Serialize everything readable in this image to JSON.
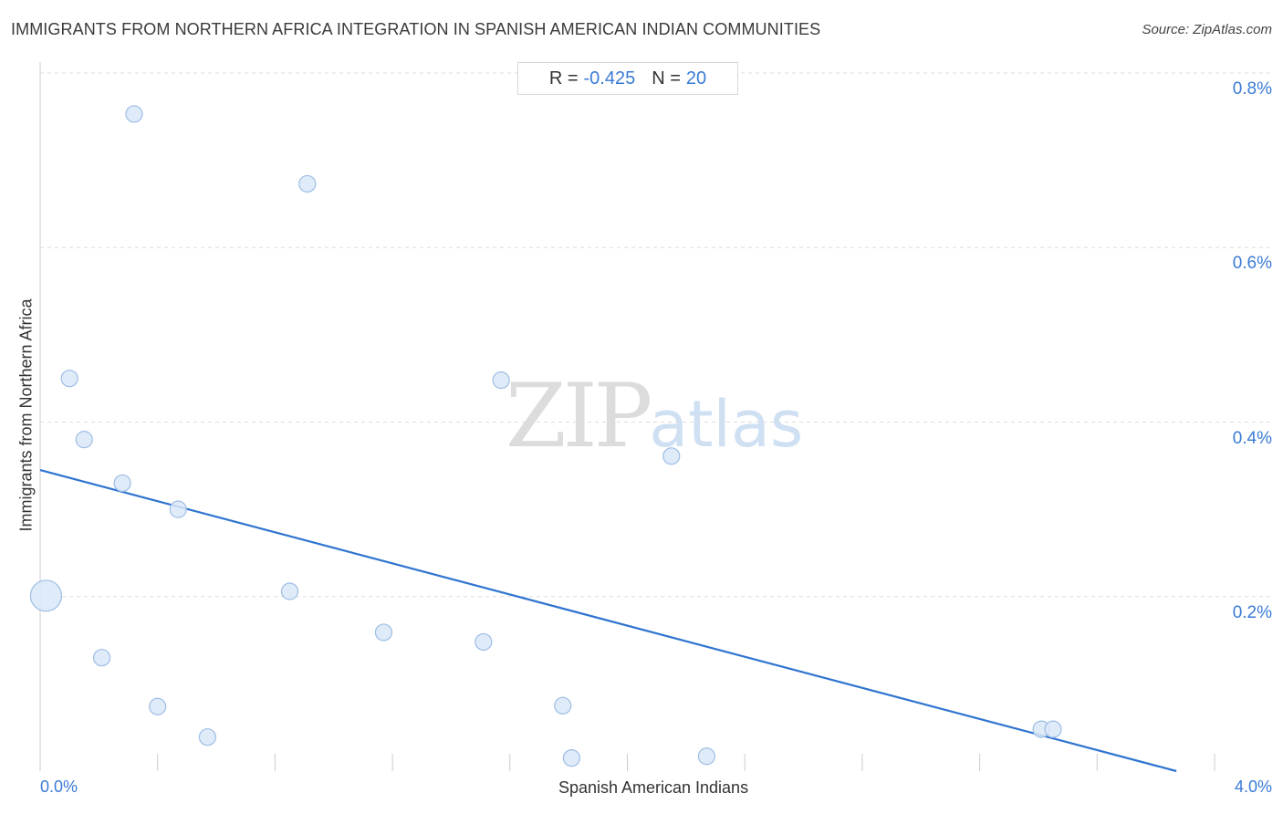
{
  "header": {
    "title": "IMMIGRANTS FROM NORTHERN AFRICA INTEGRATION IN SPANISH AMERICAN INDIAN COMMUNITIES",
    "source": "Source: ZipAtlas.com"
  },
  "stats": {
    "r_label": "R =",
    "r_value": "-0.425",
    "n_label": "N =",
    "n_value": "20"
  },
  "watermark": {
    "zip": "ZIP",
    "atlas": "atlas"
  },
  "colors": {
    "accent": "#3a7bd5",
    "point_fill": "#dbe8f8",
    "point_stroke": "#9dbde4",
    "trend": "#2f74d0",
    "grid": "#dddddd"
  },
  "chart_data": {
    "type": "scatter",
    "title": "IMMIGRANTS FROM NORTHERN AFRICA INTEGRATION IN SPANISH AMERICAN INDIAN COMMUNITIES",
    "xlabel": "Spanish American Indians",
    "ylabel": "Immigrants from Northern Africa",
    "xlim": [
      0,
      4.0
    ],
    "ylim": [
      0,
      0.8
    ],
    "x_tick_labels": {
      "min": "0.0%",
      "max": "4.0%"
    },
    "y_ticks": [
      {
        "value": 0.2,
        "label": "0.2%"
      },
      {
        "value": 0.4,
        "label": "0.4%"
      },
      {
        "value": 0.6,
        "label": "0.6%"
      },
      {
        "value": 0.8,
        "label": "0.8%"
      }
    ],
    "grid": true,
    "points": [
      {
        "x": 0.02,
        "y": 0.201,
        "size": "large"
      },
      {
        "x": 0.1,
        "y": 0.45
      },
      {
        "x": 0.15,
        "y": 0.38
      },
      {
        "x": 0.21,
        "y": 0.13
      },
      {
        "x": 0.28,
        "y": 0.33
      },
      {
        "x": 0.32,
        "y": 0.753
      },
      {
        "x": 0.4,
        "y": 0.074
      },
      {
        "x": 0.47,
        "y": 0.3
      },
      {
        "x": 0.57,
        "y": 0.039
      },
      {
        "x": 0.85,
        "y": 0.206
      },
      {
        "x": 0.91,
        "y": 0.673
      },
      {
        "x": 1.17,
        "y": 0.159
      },
      {
        "x": 1.51,
        "y": 0.148
      },
      {
        "x": 1.57,
        "y": 0.448
      },
      {
        "x": 1.78,
        "y": 0.075
      },
      {
        "x": 1.81,
        "y": 0.015
      },
      {
        "x": 2.15,
        "y": 0.361
      },
      {
        "x": 2.27,
        "y": 0.017
      },
      {
        "x": 3.41,
        "y": 0.048
      },
      {
        "x": 3.45,
        "y": 0.048
      }
    ],
    "trendline": {
      "x": [
        0,
        3.87
      ],
      "y": [
        0.345,
        0.0
      ]
    },
    "stats": {
      "r": -0.425,
      "n": 20
    }
  }
}
